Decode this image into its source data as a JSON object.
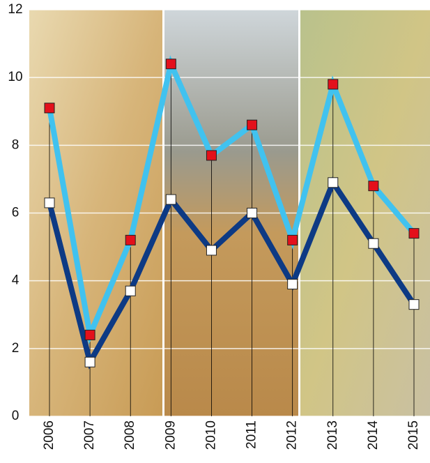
{
  "chart_data": {
    "type": "line",
    "categories": [
      "2006",
      "2007",
      "2008",
      "2009",
      "2010",
      "2011",
      "2012",
      "2013",
      "2014",
      "2015"
    ],
    "series": [
      {
        "color": "#41c2ef",
        "marker_color": "#e3101b",
        "values": [
          9.1,
          2.4,
          5.2,
          10.4,
          7.7,
          8.6,
          5.2,
          9.8,
          6.8,
          5.4
        ]
      },
      {
        "color": "#0d3a84",
        "marker_color": "#ffffff",
        "values": [
          6.3,
          1.6,
          3.7,
          6.4,
          4.9,
          6.0,
          3.9,
          6.9,
          5.1,
          3.3
        ]
      }
    ],
    "ylim": [
      0,
      12
    ],
    "yticks": [
      0,
      2,
      4,
      6,
      8,
      10,
      12
    ],
    "grid": true,
    "drop_lines": true
  }
}
